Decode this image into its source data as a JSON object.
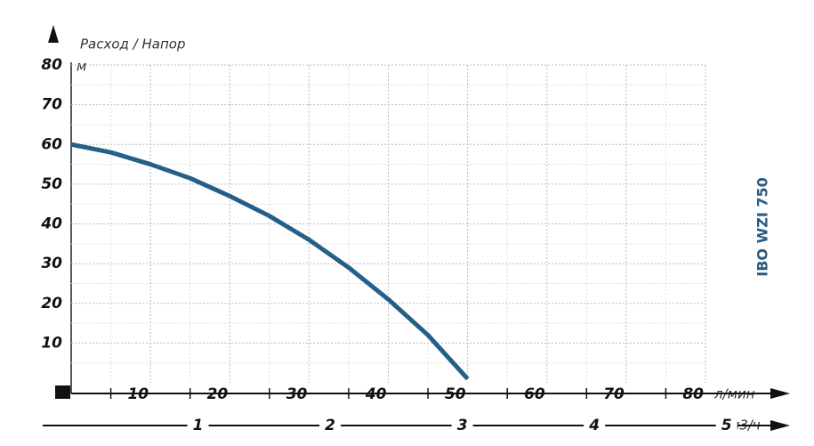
{
  "chart_data": {
    "type": "line",
    "y_label": "Расход / Напор",
    "y_unit": "м",
    "x_unit": "л/мин",
    "x2_unit": "м3/ч",
    "model": "IBO WZI 750",
    "x": [
      0,
      5,
      10,
      15,
      20,
      25,
      30,
      35,
      40,
      45,
      50
    ],
    "series": [
      {
        "name": "IBO WZI 750",
        "color": "#245f88",
        "values": [
          60,
          58,
          55,
          51.5,
          47,
          42,
          36,
          29,
          21,
          12,
          1
        ]
      }
    ],
    "xlim": [
      0,
      80
    ],
    "xticks": [
      10,
      20,
      30,
      40,
      50,
      60,
      70,
      80
    ],
    "ylim": [
      0,
      80
    ],
    "yticks": [
      10,
      20,
      30,
      40,
      50,
      60,
      70,
      80
    ],
    "x2lim": [
      0,
      4.8
    ],
    "x2ticks": [
      1,
      2,
      3,
      4,
      5
    ],
    "grid": true
  }
}
